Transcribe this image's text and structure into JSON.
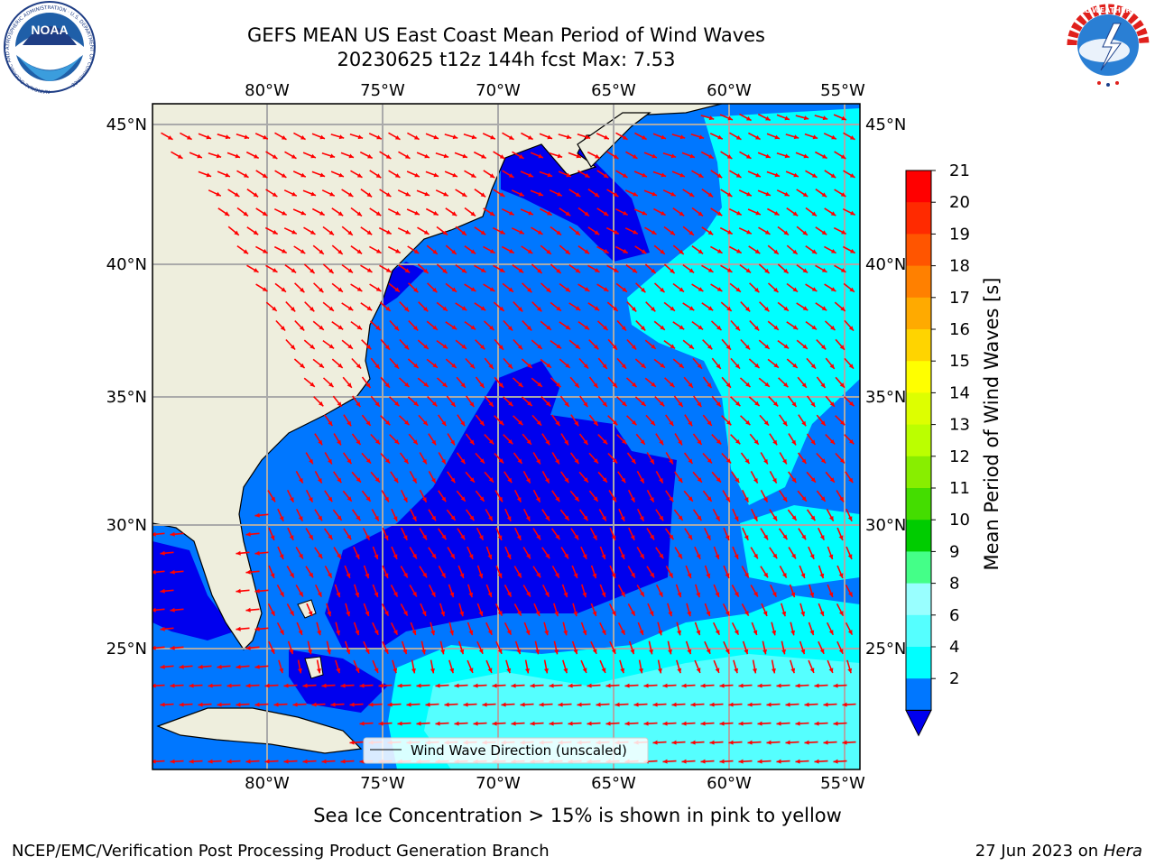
{
  "header": {
    "title": "GEFS MEAN US East Coast Mean Period of Wind Waves",
    "subtitle": "20230625 t12z 144h fcst   Max: 7.53"
  },
  "logos": {
    "noaa_text": "NOAA",
    "noaa_ring": "NATIONAL OCEANIC AND ATMOSPHERIC ADMINISTRATION · U.S. DEPARTMENT OF COMMERCE",
    "nws_ring": "NATIONAL WEATHER SERVICE"
  },
  "map": {
    "lon_labels": [
      "80°W",
      "75°W",
      "70°W",
      "65°W",
      "60°W",
      "55°W"
    ],
    "lat_labels": [
      "45°N",
      "40°N",
      "35°N",
      "30°N",
      "25°N"
    ],
    "legend_label": "Wind Wave Direction (unscaled)",
    "colors": {
      "land": "#eeeedd",
      "below_2": "#0000ee",
      "band_2_4": "#0077ff",
      "band_4_6": "#00ffff",
      "band_6_8": "#55ffff",
      "arrow": "#ff0000",
      "grid": "#aaaaaa"
    },
    "arrow_direction": "northwest to southeast in the north, north to south in the south"
  },
  "colorbar": {
    "label": "Mean Period of Wind Waves [s]",
    "ticks": [
      "21",
      "20",
      "19",
      "18",
      "17",
      "16",
      "15",
      "14",
      "13",
      "12",
      "11",
      "10",
      "9",
      "8",
      "6",
      "4",
      "2"
    ],
    "colors": [
      "#ff0000",
      "#ff2a00",
      "#ff5500",
      "#ff8000",
      "#ffaa00",
      "#ffd400",
      "#ffff00",
      "#ddff00",
      "#bbff00",
      "#88ee00",
      "#44dd00",
      "#00cc00",
      "#44ff88",
      "#99ffff",
      "#55ffff",
      "#00ffff",
      "#0077ff"
    ],
    "extend_color": "#0000ee"
  },
  "footer": {
    "note": "Sea Ice Concentration > 15% is shown in pink to yellow",
    "credit": "NCEP/EMC/Verification Post Processing Product Generation Branch",
    "date": "27 Jun 2023 on",
    "machine": "Hera"
  }
}
